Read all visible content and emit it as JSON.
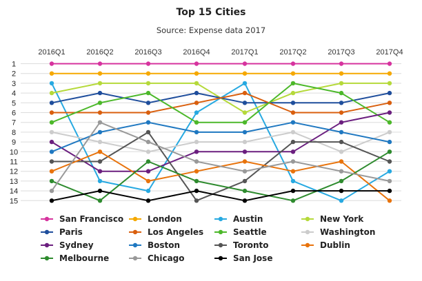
{
  "chart_data": {
    "type": "line",
    "title": "Top 15 Cities",
    "subtitle": "Source: Expense data 2017",
    "x": [
      "2016Q1",
      "2016Q2",
      "2016Q3",
      "2016Q4",
      "2017Q1",
      "2017Q2",
      "2017Q3",
      "2017Q4"
    ],
    "y_ticks": [
      "1",
      "2",
      "3",
      "4",
      "5",
      "6",
      "7",
      "8",
      "9",
      "10",
      "11",
      "12",
      "13",
      "14",
      "15"
    ],
    "ylim": [
      1,
      15
    ],
    "y_reversed": true,
    "grid": true,
    "legend_position": "bottom",
    "series": [
      {
        "name": "San Francisco",
        "color": "#d6339e",
        "values": [
          1,
          1,
          1,
          1,
          1,
          1,
          1,
          1
        ]
      },
      {
        "name": "London",
        "color": "#f5a800",
        "values": [
          2,
          2,
          2,
          2,
          2,
          2,
          2,
          2
        ]
      },
      {
        "name": "Austin",
        "color": "#27a9e1",
        "values": [
          3,
          13,
          14,
          6,
          3,
          13,
          15,
          12
        ]
      },
      {
        "name": "New York",
        "color": "#b5d93a",
        "values": [
          4,
          3,
          3,
          3,
          6,
          4,
          3,
          3
        ]
      },
      {
        "name": "Paris",
        "color": "#1f4e9c",
        "values": [
          5,
          4,
          5,
          4,
          5,
          5,
          5,
          4
        ]
      },
      {
        "name": "Los Angeles",
        "color": "#d95f0e",
        "values": [
          6,
          6,
          6,
          5,
          4,
          6,
          6,
          5
        ]
      },
      {
        "name": "Seattle",
        "color": "#4cb82a",
        "values": [
          7,
          5,
          4,
          7,
          7,
          3,
          4,
          7
        ]
      },
      {
        "name": "Washington",
        "color": "#cccccc",
        "values": [
          8,
          9,
          10,
          9,
          9,
          8,
          10,
          8
        ]
      },
      {
        "name": "Sydney",
        "color": "#6b1f7f",
        "values": [
          9,
          12,
          12,
          10,
          10,
          10,
          7,
          6
        ]
      },
      {
        "name": "Boston",
        "color": "#1f78c1",
        "values": [
          10,
          8,
          7,
          8,
          8,
          7,
          8,
          9
        ]
      },
      {
        "name": "Toronto",
        "color": "#555555",
        "values": [
          11,
          11,
          8,
          15,
          13,
          9,
          9,
          11
        ]
      },
      {
        "name": "Dublin",
        "color": "#e8730c",
        "values": [
          12,
          10,
          13,
          12,
          11,
          12,
          11,
          15
        ]
      },
      {
        "name": "Melbourne",
        "color": "#2e8b2e",
        "values": [
          13,
          15,
          11,
          13,
          14,
          15,
          13,
          10
        ]
      },
      {
        "name": "Chicago",
        "color": "#999999",
        "values": [
          14,
          7,
          9,
          11,
          12,
          11,
          12,
          13
        ]
      },
      {
        "name": "San Jose",
        "color": "#000000",
        "values": [
          15,
          14,
          15,
          14,
          15,
          14,
          14,
          14
        ]
      }
    ]
  }
}
